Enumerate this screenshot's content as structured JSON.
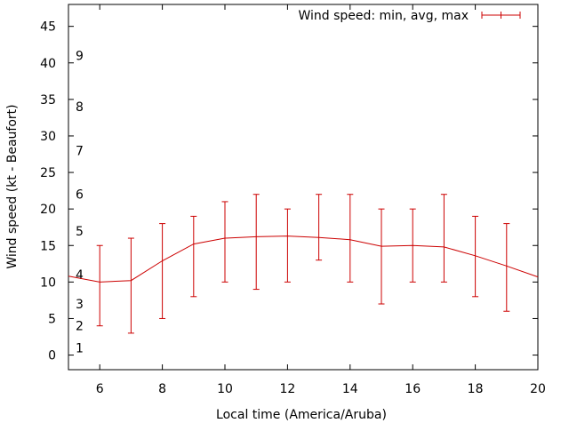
{
  "chart_data": {
    "type": "line",
    "xlabel": "Local time (America/Aruba)",
    "ylabel": "Wind speed (kt - Beaufort)",
    "xlim": [
      5,
      20
    ],
    "ylim": [
      -2,
      48
    ],
    "x_ticks": [
      6,
      8,
      10,
      12,
      14,
      16,
      18,
      20
    ],
    "y_ticks": [
      0,
      5,
      10,
      15,
      20,
      25,
      30,
      35,
      40,
      45
    ],
    "grid": false,
    "legend_position": "top-right",
    "beaufort_labels": [
      {
        "label": "1",
        "y": 1
      },
      {
        "label": "2",
        "y": 4
      },
      {
        "label": "3",
        "y": 7
      },
      {
        "label": "4",
        "y": 11
      },
      {
        "label": "5",
        "y": 17
      },
      {
        "label": "6",
        "y": 22
      },
      {
        "label": "7",
        "y": 28
      },
      {
        "label": "8",
        "y": 34
      },
      {
        "label": "9",
        "y": 41
      }
    ],
    "series": [
      {
        "name": "Wind speed: min, avg, max",
        "color": "#cc0000",
        "points": [
          {
            "x": 5,
            "avg": 10.8
          },
          {
            "x": 6,
            "avg": 10.0,
            "min": 4,
            "max": 15
          },
          {
            "x": 7,
            "avg": 10.2,
            "min": 3,
            "max": 16
          },
          {
            "x": 8,
            "avg": 12.9,
            "min": 5,
            "max": 18
          },
          {
            "x": 9,
            "avg": 15.2,
            "min": 8,
            "max": 19
          },
          {
            "x": 10,
            "avg": 16.0,
            "min": 10,
            "max": 21
          },
          {
            "x": 11,
            "avg": 16.2,
            "min": 9,
            "max": 22
          },
          {
            "x": 12,
            "avg": 16.3,
            "min": 10,
            "max": 20
          },
          {
            "x": 13,
            "avg": 16.1,
            "min": 13,
            "max": 22
          },
          {
            "x": 14,
            "avg": 15.8,
            "min": 10,
            "max": 22
          },
          {
            "x": 15,
            "avg": 14.9,
            "min": 7,
            "max": 20
          },
          {
            "x": 16,
            "avg": 15.0,
            "min": 10,
            "max": 20
          },
          {
            "x": 17,
            "avg": 14.8,
            "min": 10,
            "max": 22
          },
          {
            "x": 18,
            "avg": 13.6,
            "min": 8,
            "max": 19
          },
          {
            "x": 19,
            "avg": 12.2,
            "min": 6,
            "max": 18
          },
          {
            "x": 20,
            "avg": 10.7
          }
        ]
      }
    ]
  }
}
